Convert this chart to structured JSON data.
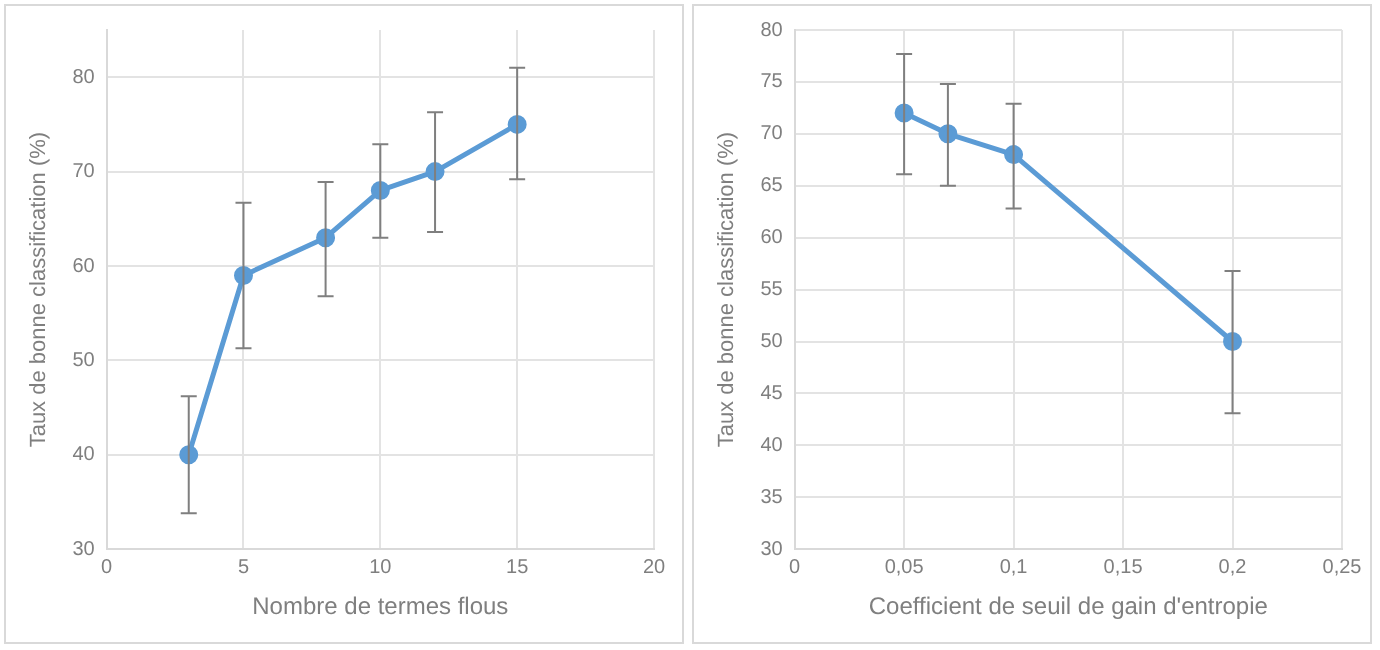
{
  "chart_data": [
    {
      "type": "line",
      "xlabel": "Nombre de termes flous",
      "ylabel": "Taux de bonne classification (%)",
      "x": [
        3,
        5,
        8,
        10,
        12,
        15
      ],
      "series": [
        {
          "color": "#5b9bd5",
          "values": [
            40,
            59,
            63,
            68,
            70,
            75
          ],
          "errors": [
            [
              33.8,
              46.2
            ],
            [
              51.3,
              66.7
            ],
            [
              56.8,
              68.9
            ],
            [
              63,
              72.9
            ],
            [
              63.6,
              76.3
            ],
            [
              69.2,
              81
            ]
          ]
        }
      ],
      "xlim": [
        0,
        20
      ],
      "xticks": [
        0,
        5,
        10,
        15,
        20
      ],
      "ylim": [
        30,
        85
      ],
      "yticks": [
        30,
        40,
        50,
        60,
        70,
        80
      ],
      "grid": true,
      "legend": false,
      "marker": "circle",
      "line_style": "solid"
    },
    {
      "type": "line",
      "xlabel": "Coefficient de seuil de gain d'entropie",
      "ylabel": "Taux de bonne classification (%)",
      "x": [
        0.05,
        0.07,
        0.1,
        0.2
      ],
      "series": [
        {
          "color": "#5b9bd5",
          "values": [
            72,
            70,
            68,
            50
          ],
          "errors": [
            [
              66.1,
              77.7
            ],
            [
              65,
              74.8
            ],
            [
              62.8,
              72.9
            ],
            [
              43.1,
              56.8
            ]
          ]
        }
      ],
      "xlim": [
        0,
        0.25
      ],
      "xticks": [
        0,
        {
          "value": 0.05,
          "label": "0,05"
        },
        {
          "value": 0.1,
          "label": "0,1"
        },
        {
          "value": 0.15,
          "label": "0,15"
        },
        {
          "value": 0.2,
          "label": "0,2"
        },
        {
          "value": 0.25,
          "label": "0,25"
        }
      ],
      "ylim": [
        30,
        80
      ],
      "yticks": [
        30,
        35,
        40,
        45,
        50,
        55,
        60,
        65,
        70,
        75,
        80
      ],
      "grid": true,
      "legend": false,
      "marker": "circle",
      "line_style": "solid"
    }
  ]
}
